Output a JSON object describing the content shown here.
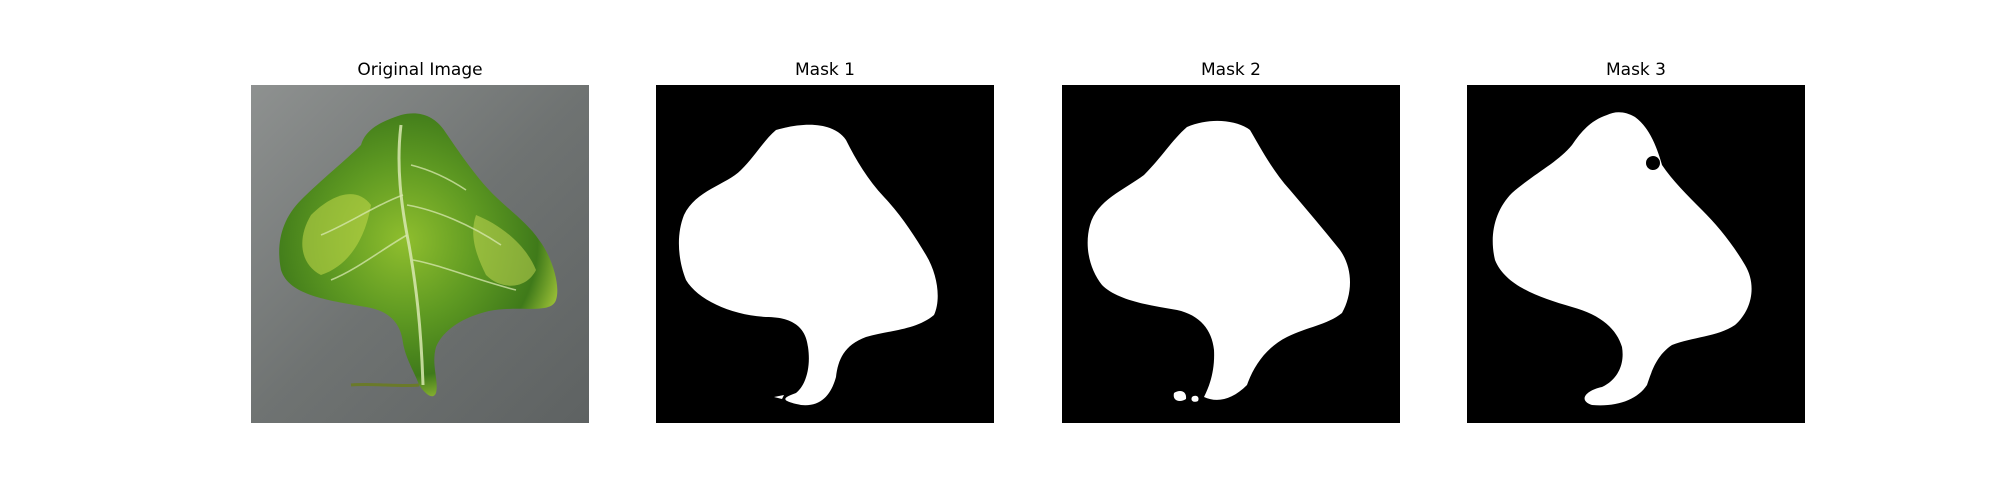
{
  "figure": {
    "panels": [
      {
        "title": "Original Image"
      },
      {
        "title": "Mask 1"
      },
      {
        "title": "Mask 2"
      },
      {
        "title": "Mask 3"
      }
    ]
  }
}
